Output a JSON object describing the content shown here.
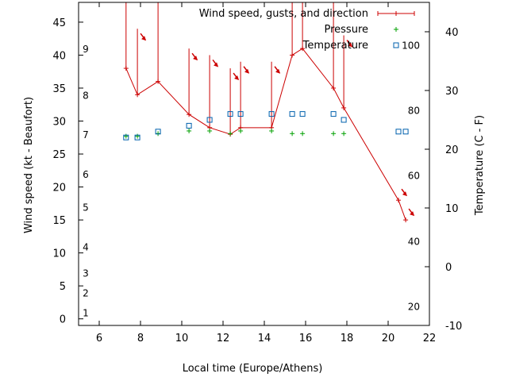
{
  "chart_data": {
    "type": "line",
    "xlabel": "Local time (Europe/Athens)",
    "ylabel": "Wind speed (kt - Beaufort)",
    "y2label": "Temperature (C - F)",
    "xlim": [
      5,
      22
    ],
    "ylim": [
      -1,
      48
    ],
    "y2lim": [
      -10,
      45
    ],
    "grid": false,
    "legend_position": "top-right",
    "x_ticks": [
      6,
      8,
      10,
      12,
      14,
      16,
      18,
      20,
      22
    ],
    "y_ticks": [
      0,
      5,
      10,
      15,
      20,
      25,
      30,
      35,
      40,
      45
    ],
    "y2_ticks": [
      -10,
      0,
      10,
      20,
      30,
      40
    ],
    "beaufort_labels": [
      {
        "label": "1",
        "at": 1
      },
      {
        "label": "2",
        "at": 4
      },
      {
        "label": "3",
        "at": 7
      },
      {
        "label": "4",
        "at": 11
      },
      {
        "label": "5",
        "at": 17
      },
      {
        "label": "6",
        "at": 22
      },
      {
        "label": "7",
        "at": 28
      },
      {
        "label": "8",
        "at": 34
      },
      {
        "label": "9",
        "at": 41
      }
    ],
    "fahrenheit_labels": [
      {
        "label": "20",
        "at": -6.7
      },
      {
        "label": "40",
        "at": 4.4
      },
      {
        "label": "60",
        "at": 15.6
      },
      {
        "label": "80",
        "at": 26.7
      },
      {
        "label": "100",
        "at": 37.8
      }
    ],
    "series": [
      {
        "name": "Wind speed, gusts, and direction",
        "color": "#cc0000",
        "x": [
          7.3,
          7.85,
          8.85,
          10.35,
          11.35,
          12.35,
          12.85,
          14.35,
          15.35,
          15.85,
          17.35,
          17.85,
          20.5,
          20.85
        ],
        "y": [
          38,
          34,
          36,
          31,
          29,
          28,
          29,
          29,
          40,
          41,
          35,
          32,
          18,
          15
        ],
        "gusts": [
          48,
          44,
          48,
          41,
          40,
          38,
          39,
          39,
          48,
          48,
          48,
          43,
          null,
          null
        ],
        "direction_arrows_x": [
          7.85,
          10.35,
          11.35,
          12.35,
          12.85,
          14.35,
          17.85,
          20.5,
          20.85
        ]
      },
      {
        "name": "Pressure",
        "color": "#00a000",
        "x": [
          7.3,
          7.85,
          8.85,
          10.35,
          11.35,
          12.35,
          12.85,
          14.35,
          15.35,
          15.85,
          17.35,
          17.85
        ],
        "y": [
          27.7,
          27.7,
          28.1,
          28.5,
          28.5,
          28.1,
          28.5,
          28.5,
          28.1,
          28.1,
          28.1,
          28.1
        ]
      },
      {
        "name": "Temperature",
        "color": "#0060ad",
        "x": [
          7.3,
          7.85,
          8.85,
          10.35,
          11.35,
          12.35,
          12.85,
          14.35,
          15.35,
          15.85,
          17.35,
          17.85,
          20.5,
          20.85
        ],
        "y2": [
          22,
          22,
          23,
          24,
          25,
          26,
          26,
          26,
          26,
          26,
          26,
          25,
          23,
          23
        ]
      }
    ]
  }
}
